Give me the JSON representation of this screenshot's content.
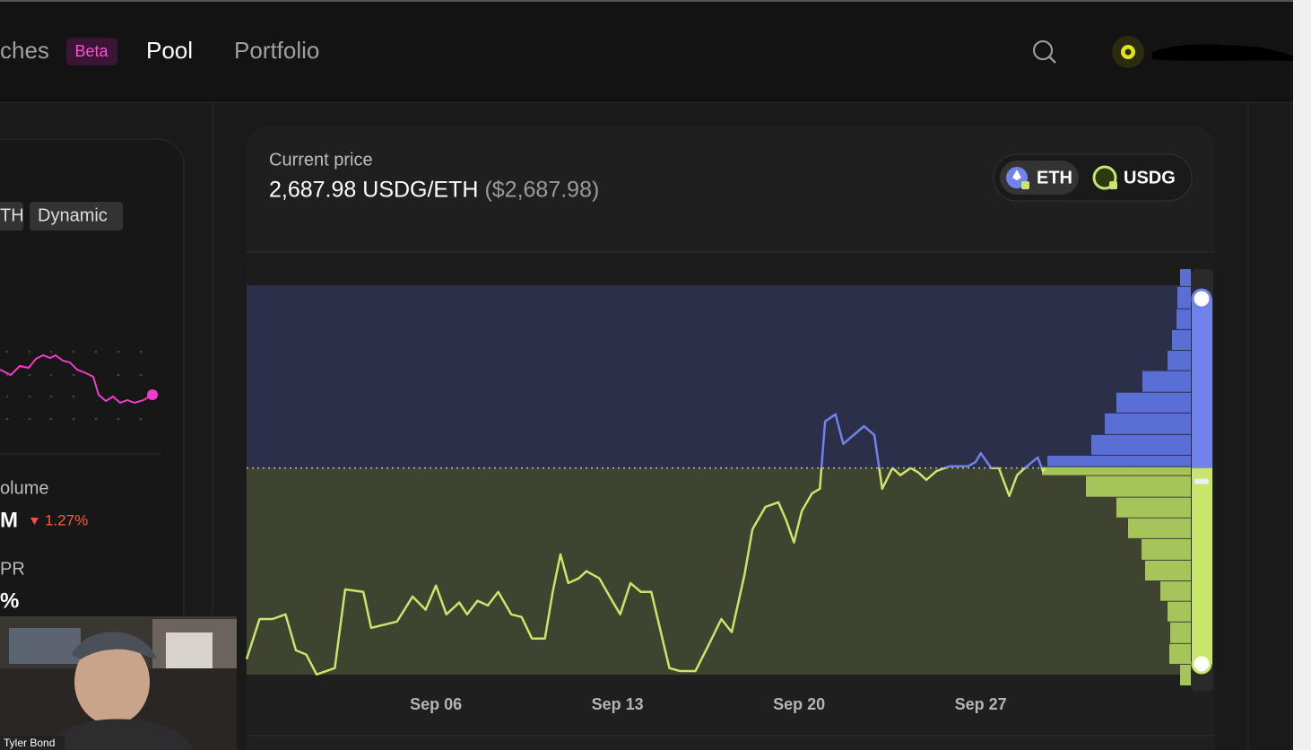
{
  "nav": {
    "swaps": "ches",
    "badge": "Beta",
    "pool": "Pool",
    "portfolio": "Portfolio"
  },
  "sidebar": {
    "tags": [
      "TH",
      "Dynamic"
    ],
    "volume_label": "olume",
    "volume_value": "M",
    "volume_change": "1.27%",
    "apr_label": "PR",
    "apr_value": "%"
  },
  "webcam": {
    "name": "Tyler Bond"
  },
  "price_card": {
    "label": "Current price",
    "price": "2,687.98 USDG/ETH",
    "price_usd": "($2,687.98)",
    "tokens": [
      "ETH",
      "USDG"
    ]
  },
  "chart_data": {
    "type": "line",
    "x": [
      -1.3,
      -0.8,
      -0.3,
      0.2,
      0.6,
      1.0,
      1.4,
      2.1,
      2.5,
      3.2,
      3.5,
      4.5,
      5.1,
      5.6,
      6.0,
      6.4,
      6.9,
      7.2,
      7.6,
      8.0,
      8.4,
      8.9,
      9.3,
      9.7,
      10.2,
      10.5,
      10.8,
      11.1,
      11.5,
      11.8,
      12.3,
      12.7,
      13.1,
      13.5,
      13.9,
      14.3,
      15.0,
      15.4,
      16.0,
      16.5,
      17.0,
      17.4,
      17.9,
      18.2,
      18.7,
      19.2,
      19.5,
      19.8,
      20.1,
      20.5,
      20.8,
      21.0,
      21.4,
      21.7,
      22.1,
      22.5,
      22.9,
      23.2,
      23.6,
      23.9,
      24.3,
      24.6,
      24.9,
      25.3,
      25.8,
      26.5,
      26.8,
      27.0,
      27.4,
      27.7,
      28.1,
      28.4,
      28.7,
      29.2,
      29.4,
      29.5
    ],
    "series": [
      {
        "values": [
          2236,
          2331,
          2331,
          2342,
          2257,
          2247,
          2200,
          2215,
          2401,
          2395,
          2310,
          2325,
          2384,
          2353,
          2410,
          2342,
          2370,
          2342,
          2374,
          2363,
          2395,
          2342,
          2336,
          2285,
          2285,
          2395,
          2484,
          2416,
          2427,
          2444,
          2427,
          2384,
          2342,
          2416,
          2395,
          2395,
          2215,
          2208,
          2208,
          2268,
          2331,
          2300,
          2437,
          2543,
          2596,
          2607,
          2565,
          2512,
          2586,
          2628,
          2639,
          2798,
          2815,
          2745,
          2766,
          2787,
          2766,
          2639,
          2688,
          2671,
          2688,
          2677,
          2660,
          2681,
          2692,
          2692,
          2702,
          2723,
          2688,
          2688,
          2622,
          2671,
          2688,
          2713,
          2681,
          2688
        ]
      }
    ],
    "xlim": [
      -1.3,
      35.1
    ],
    "xticks": [
      {
        "value": 6,
        "label": "Sep 06"
      },
      {
        "value": 13,
        "label": "Sep 13"
      },
      {
        "value": 20,
        "label": "Sep 20"
      },
      {
        "value": 27,
        "label": "Sep 27"
      }
    ],
    "ylim": [
      2172,
      3158
    ],
    "current_price": 2687.98,
    "color_above": "#6f83ea",
    "color_below": "#c9e56b",
    "liquidity": {
      "bins": [
        2172,
        2223,
        2272,
        2323,
        2372,
        2420,
        2469,
        2520,
        2569,
        2618,
        2669,
        2690,
        2717,
        2766,
        2817,
        2866,
        2917,
        2965,
        3014,
        3063,
        3116,
        3158
      ],
      "values": [
        12,
        24,
        23,
        26,
        34,
        51,
        55,
        70,
        83,
        117,
        166,
        160,
        111,
        96,
        83,
        54,
        26,
        21,
        16,
        15,
        12
      ],
      "xlim": [
        0,
        200
      ]
    },
    "range": [
      2225,
      3088
    ]
  }
}
